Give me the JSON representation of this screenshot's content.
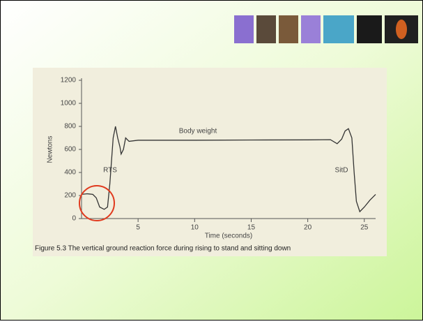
{
  "chart_data": {
    "type": "line",
    "caption": "Figure 5.3 The vertical ground reaction force during rising to stand and sitting down",
    "y_label": "Newtons",
    "x_label": "Time (seconds)",
    "annotations": [
      "Body weight",
      "RTS",
      "SitD"
    ],
    "x": [
      0,
      0.5,
      1,
      1.3,
      1.6,
      2,
      2.3,
      2.5,
      2.8,
      3,
      3.2,
      3.4,
      3.5,
      3.7,
      3.9,
      4.2,
      5,
      10,
      15,
      20,
      22,
      22.6,
      23,
      23.3,
      23.6,
      23.9,
      24.1,
      24.3,
      24.6,
      25,
      25.5,
      26
    ],
    "values": [
      210,
      215,
      210,
      180,
      100,
      80,
      100,
      300,
      700,
      800,
      700,
      620,
      560,
      600,
      700,
      670,
      680,
      680,
      682,
      683,
      685,
      650,
      690,
      760,
      780,
      700,
      400,
      150,
      60,
      100,
      160,
      210
    ],
    "color": "#333333",
    "xlim": [
      0,
      26
    ],
    "ylim": [
      0,
      1200
    ],
    "xticks": [
      5,
      10,
      15,
      20,
      25
    ],
    "yticks": [
      0,
      200,
      400,
      600,
      800,
      1000,
      1200
    ]
  }
}
